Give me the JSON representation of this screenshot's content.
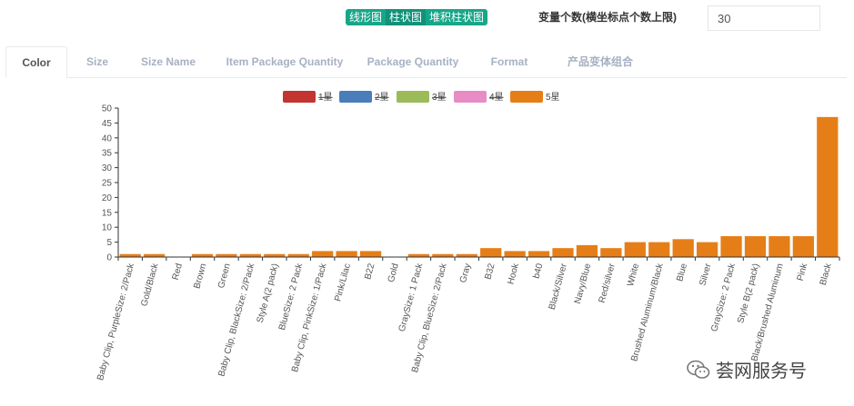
{
  "toolbar": {
    "chart_types": [
      "线形图",
      "柱状图",
      "堆积柱状图"
    ],
    "active_chart_type": 1,
    "points_label": "变量个数(横坐标点个数上限)",
    "points_value": "30"
  },
  "tabs": [
    "Color",
    "Size",
    "Size Name",
    "Item Package Quantity",
    "Package Quantity",
    "Format",
    "产品变体组合"
  ],
  "active_tab": 0,
  "chart_data": {
    "type": "bar",
    "categories": [
      "Baby Clip, PurpleSize: 2/Pack",
      "Gold/Black",
      "Red",
      "Brown",
      "Green",
      "Baby Clip, BlackSize: 2/Pack",
      "Style A(2 pack)",
      "BlueSize: 2 Pack",
      "Baby Clip, PinkSize: 1/Pack",
      "Pink/Lilac",
      "B22",
      "Gold",
      "GraySize: 1 Pack",
      "Baby Clip, BlueSize: 2/Pack",
      "Gray",
      "B32",
      "Hook",
      "b40",
      "Black/Silver",
      "Navy/Blue",
      "Red/silver",
      "White",
      "Brushed Aluminum/Black",
      "Blue",
      "Silver",
      "GraySize: 2 Pack",
      "Style B(2 pack)",
      "Black/Brushed Aluminum",
      "Pink",
      "Black"
    ],
    "series": [
      {
        "name": "1星",
        "color": "#c23531",
        "values": [
          0,
          0,
          0,
          0,
          0,
          0,
          0,
          0,
          0,
          0,
          0,
          0,
          0,
          0,
          0,
          0,
          0,
          0,
          0,
          0,
          0,
          0,
          0,
          0,
          0,
          0,
          0,
          0,
          0,
          0
        ]
      },
      {
        "name": "2星",
        "color": "#4a7ebb",
        "values": [
          0,
          0,
          0,
          0,
          0,
          0,
          0,
          0,
          0,
          0,
          0,
          0,
          0,
          0,
          0,
          0,
          0,
          0,
          0,
          0,
          0,
          0,
          0,
          0,
          0,
          0,
          0,
          0,
          0,
          0
        ]
      },
      {
        "name": "3星",
        "color": "#9bbb59",
        "values": [
          0,
          0,
          0,
          0,
          0,
          0,
          0,
          0,
          0,
          0,
          0,
          0,
          0,
          0,
          0,
          0,
          0,
          0,
          0,
          0,
          0,
          0,
          0,
          0,
          0,
          0,
          0,
          0,
          0,
          0
        ]
      },
      {
        "name": "4星",
        "color": "#e88cc5",
        "values": [
          0,
          0,
          0,
          0,
          0,
          0,
          0,
          0,
          0,
          0,
          0,
          0,
          0,
          0,
          0,
          0,
          0,
          0,
          0,
          0,
          0,
          0,
          0,
          0,
          0,
          0,
          0,
          0,
          0,
          0
        ]
      },
      {
        "name": "5星",
        "color": "#e67e17",
        "values": [
          1,
          1,
          0,
          1,
          1,
          1,
          1,
          1,
          2,
          2,
          2,
          0,
          1,
          1,
          1,
          3,
          2,
          2,
          3,
          4,
          3,
          5,
          5,
          6,
          5,
          7,
          7,
          7,
          7,
          47
        ]
      }
    ],
    "hidden_series": [
      "1星",
      "2星",
      "3星",
      "4星"
    ],
    "y_ticks": [
      0,
      5,
      10,
      15,
      20,
      25,
      30,
      35,
      40,
      45,
      50
    ],
    "ylim": [
      0,
      50
    ],
    "legend_position": "top-center",
    "grid": false
  },
  "watermark": {
    "text": "荟网服务号",
    "icon": "wechat-icon"
  }
}
